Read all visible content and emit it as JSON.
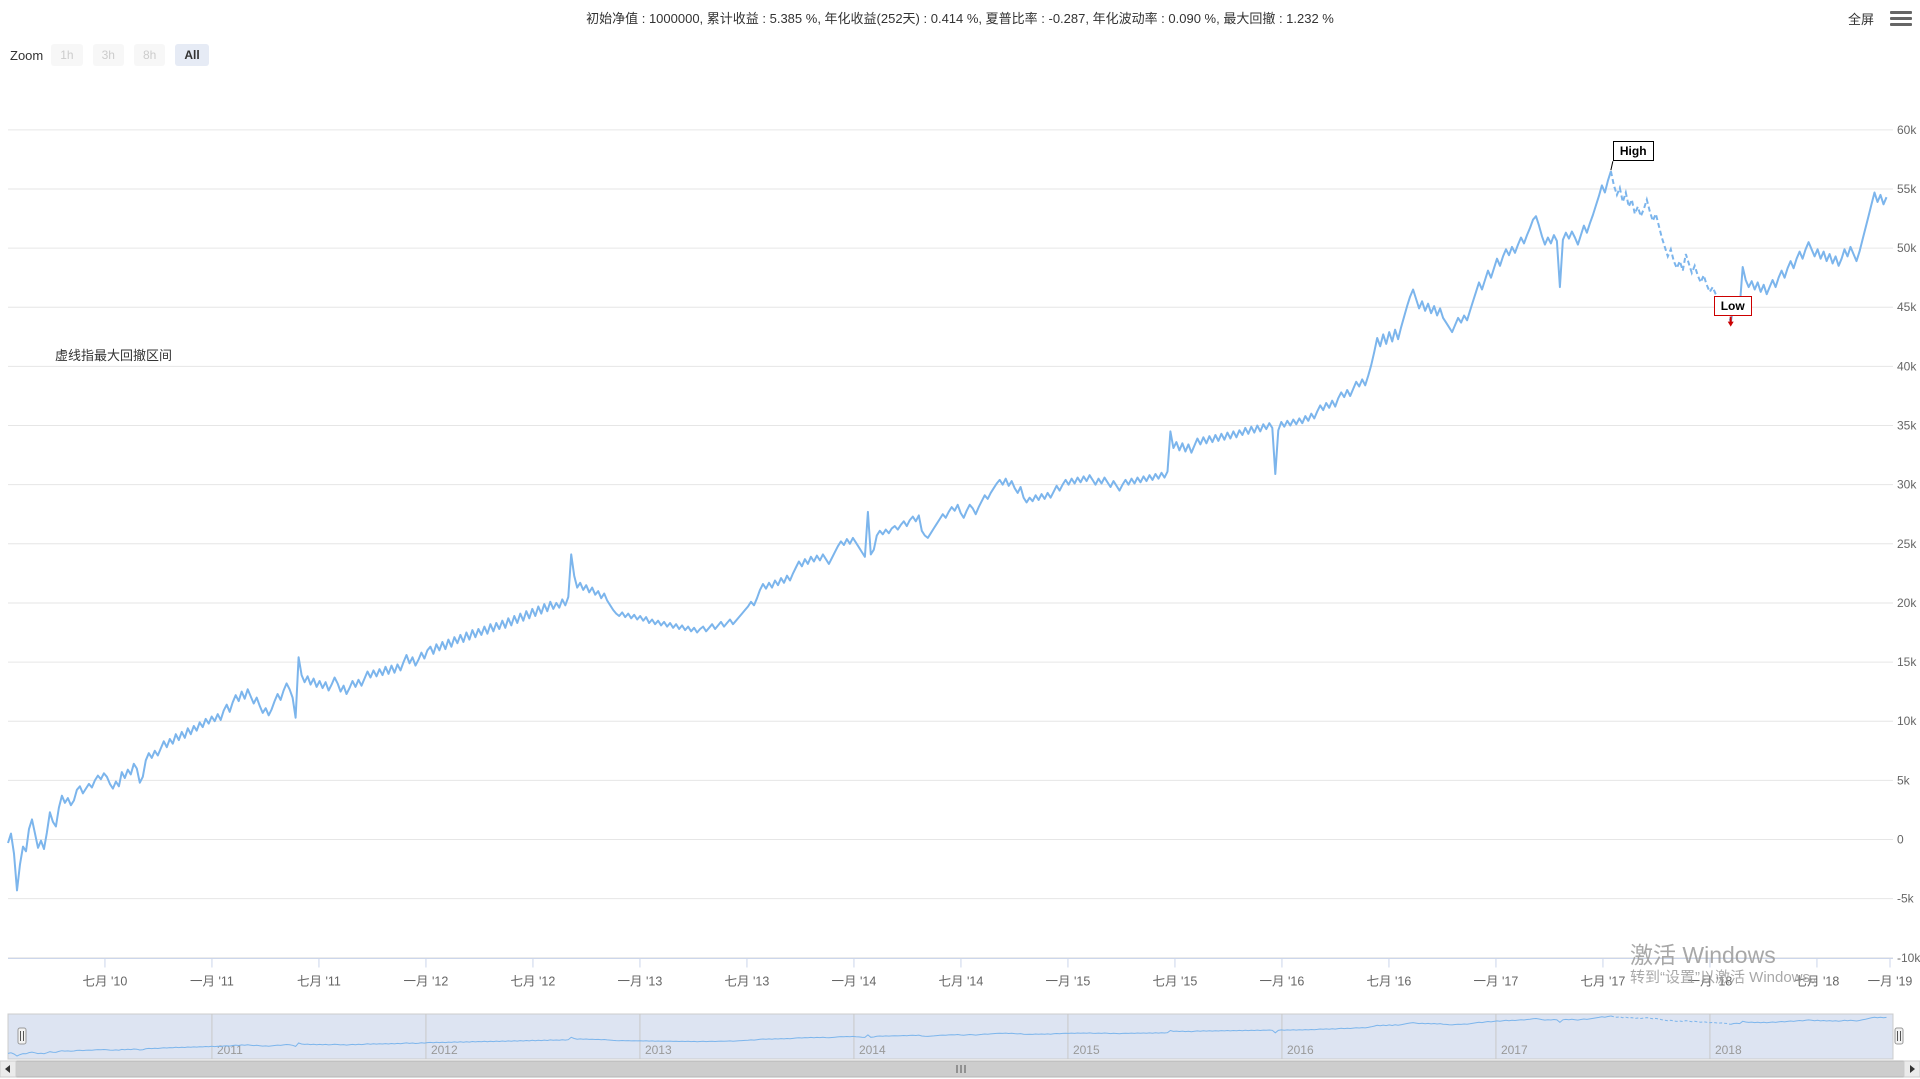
{
  "header": {
    "title": "初始净值 : 1000000, 累计收益 : 5.385 %, 年化收益(252天) : 0.414 %, 夏普比率 : -0.287, 年化波动率 : 0.090 %, 最大回撤 : 1.232 %",
    "fullscreen_label": "全屏"
  },
  "toolbar": {
    "zoom_label": "Zoom",
    "buttons": [
      {
        "label": "1h",
        "state": "disabled"
      },
      {
        "label": "3h",
        "state": "disabled"
      },
      {
        "label": "8h",
        "state": "disabled"
      },
      {
        "label": "All",
        "state": "active"
      }
    ]
  },
  "annotations": {
    "drawdown_note": "虚线指最大回撤区间",
    "high_label": "High",
    "low_label": "Low"
  },
  "watermark": {
    "line1": "激活 Windows",
    "line2": "转到“设置”以激活 Windows。"
  },
  "colors": {
    "line": "#7cb5ec",
    "grid": "#e6e6e6",
    "axis_line": "#ccd6eb",
    "axis_label": "#666666",
    "nav_mask": "rgba(102,133,194,0.22)",
    "nav_outline": "#cccccc",
    "nav_grid": "#c8c8c8",
    "nav_label": "#999999",
    "scrollbar_track": "#f2f2f2",
    "scrollbar_thumb": "#cdcdcd",
    "scrollbar_border": "#cccccc",
    "low_marker": "#cc0000"
  },
  "chart_data": {
    "type": "line",
    "title": "",
    "x_axis": {
      "tick_labels": [
        "七月 '10",
        "一月 '11",
        "七月 '11",
        "一月 '12",
        "七月 '12",
        "一月 '13",
        "七月 '13",
        "一月 '14",
        "七月 '14",
        "一月 '15",
        "七月 '15",
        "一月 '16",
        "七月 '16",
        "一月 '17",
        "七月 '17",
        "一月 '18",
        "七月 '18",
        "一月 '19"
      ],
      "tick_years": [
        2010.5,
        2011.0,
        2011.5,
        2012.0,
        2012.5,
        2013.0,
        2013.5,
        2014.0,
        2014.5,
        2015.0,
        2015.5,
        2016.0,
        2016.5,
        2017.0,
        2017.5,
        2018.0,
        2018.5,
        2019.0
      ]
    },
    "y_axis": {
      "unit": "k",
      "tick_labels": [
        "60k",
        "55k",
        "50k",
        "45k",
        "40k",
        "35k",
        "30k",
        "25k",
        "20k",
        "15k",
        "10k",
        "5k",
        "0",
        "-5k",
        "-10k"
      ],
      "tick_values": [
        60,
        55,
        50,
        45,
        40,
        35,
        30,
        25,
        20,
        15,
        10,
        5,
        0,
        -5,
        -10
      ],
      "range": [
        -10,
        60
      ]
    },
    "navigator": {
      "year_labels": [
        "2011",
        "2012",
        "2013",
        "2014",
        "2015",
        "2016",
        "2017",
        "2018"
      ],
      "year_values": [
        2011,
        2012,
        2013,
        2014,
        2015,
        2016,
        2017,
        2018
      ]
    },
    "series_start_year": 2010.047,
    "series_step_years": 0.014,
    "high_index": 535,
    "low_index": 575,
    "values_k": [
      -0.3,
      0.5,
      -1.2,
      -4.3,
      -2.1,
      -0.6,
      -1.0,
      0.9,
      1.7,
      0.5,
      -0.7,
      -0.1,
      -0.8,
      0.6,
      2.3,
      1.5,
      1.1,
      2.7,
      3.7,
      3.1,
      3.5,
      2.9,
      3.3,
      4.2,
      4.5,
      3.9,
      4.3,
      4.7,
      4.4,
      5.0,
      5.4,
      5.1,
      5.6,
      5.3,
      4.7,
      4.3,
      4.9,
      4.5,
      5.7,
      5.2,
      5.9,
      5.5,
      6.4,
      6.0,
      4.8,
      5.3,
      6.7,
      7.3,
      6.9,
      7.5,
      7.1,
      7.7,
      8.3,
      7.8,
      8.5,
      8.1,
      8.9,
      8.4,
      9.1,
      8.6,
      9.4,
      8.9,
      9.6,
      9.2,
      9.9,
      9.5,
      10.2,
      9.8,
      10.4,
      10.0,
      10.6,
      10.1,
      10.9,
      11.4,
      10.8,
      11.6,
      12.2,
      11.7,
      12.5,
      11.9,
      12.7,
      12.1,
      11.5,
      12.0,
      11.3,
      10.7,
      11.1,
      10.5,
      11.0,
      11.7,
      12.3,
      11.8,
      12.6,
      13.2,
      12.7,
      12.0,
      10.3,
      15.4,
      13.9,
      13.3,
      13.8,
      13.1,
      13.6,
      12.9,
      13.4,
      12.8,
      13.3,
      12.6,
      13.1,
      13.7,
      13.2,
      12.5,
      13.0,
      12.3,
      12.8,
      13.4,
      12.9,
      13.5,
      13.0,
      13.6,
      14.2,
      13.7,
      14.3,
      13.8,
      14.4,
      13.9,
      14.6,
      14.0,
      14.7,
      14.1,
      14.8,
      14.3,
      15.0,
      15.6,
      14.9,
      15.4,
      14.7,
      15.2,
      15.8,
      15.3,
      16.0,
      16.3,
      15.7,
      16.5,
      16.0,
      16.7,
      16.1,
      16.9,
      16.3,
      17.1,
      16.6,
      17.3,
      16.7,
      17.5,
      16.9,
      17.7,
      17.1,
      17.8,
      17.3,
      18.0,
      17.4,
      18.2,
      17.6,
      18.3,
      17.8,
      18.5,
      17.9,
      18.7,
      18.1,
      18.9,
      18.3,
      19.1,
      18.5,
      19.3,
      18.7,
      19.5,
      18.9,
      19.7,
      19.1,
      19.9,
      19.3,
      20.1,
      19.5,
      20.0,
      19.6,
      20.3,
      19.8,
      20.5,
      24.1,
      22.3,
      21.3,
      21.7,
      21.1,
      21.5,
      20.9,
      21.3,
      20.7,
      21.0,
      20.4,
      20.8,
      20.2,
      19.8,
      19.4,
      19.1,
      18.9,
      19.2,
      18.8,
      19.1,
      18.7,
      19.0,
      18.6,
      18.9,
      18.5,
      18.8,
      18.3,
      18.6,
      18.2,
      18.5,
      18.1,
      18.4,
      18.0,
      18.3,
      17.9,
      18.2,
      17.8,
      18.1,
      17.7,
      18.0,
      17.6,
      17.9,
      17.5,
      17.8,
      18.0,
      17.6,
      17.9,
      18.2,
      17.8,
      18.1,
      18.4,
      18.0,
      18.3,
      18.6,
      18.2,
      18.5,
      18.8,
      19.1,
      19.4,
      19.7,
      20.1,
      19.8,
      20.4,
      21.1,
      21.6,
      21.2,
      21.7,
      21.3,
      21.9,
      21.5,
      22.1,
      21.7,
      22.3,
      21.9,
      22.5,
      23.0,
      23.5,
      23.1,
      23.7,
      23.3,
      23.9,
      23.5,
      24.0,
      23.6,
      24.1,
      23.7,
      23.3,
      23.8,
      24.3,
      24.8,
      25.2,
      24.9,
      25.4,
      25.0,
      25.5,
      25.1,
      24.7,
      24.3,
      23.9,
      27.7,
      24.1,
      24.5,
      25.7,
      26.1,
      25.8,
      26.2,
      25.9,
      26.3,
      26.5,
      26.2,
      26.6,
      26.9,
      26.5,
      27.0,
      27.3,
      26.9,
      27.4,
      26.1,
      25.7,
      25.5,
      25.9,
      26.3,
      26.7,
      27.1,
      27.5,
      27.2,
      27.7,
      28.1,
      27.8,
      28.3,
      27.6,
      27.2,
      27.8,
      28.3,
      28.0,
      27.5,
      28.1,
      28.6,
      29.1,
      28.8,
      29.3,
      29.7,
      30.1,
      30.4,
      30.0,
      30.5,
      29.9,
      30.3,
      29.7,
      29.3,
      29.8,
      28.9,
      28.5,
      28.9,
      28.6,
      29.1,
      28.7,
      29.2,
      28.8,
      29.3,
      28.9,
      29.4,
      29.9,
      29.5,
      30.0,
      30.4,
      30.0,
      30.5,
      30.1,
      30.6,
      30.2,
      30.7,
      30.3,
      30.8,
      30.4,
      30.0,
      30.5,
      30.1,
      30.6,
      30.2,
      29.8,
      30.3,
      29.9,
      29.5,
      30.0,
      30.4,
      30.0,
      30.5,
      30.1,
      30.6,
      30.2,
      30.7,
      30.3,
      30.8,
      30.4,
      30.9,
      30.5,
      31.0,
      30.6,
      31.1,
      34.5,
      33.1,
      33.6,
      32.9,
      33.5,
      32.8,
      33.4,
      32.7,
      33.3,
      33.9,
      33.4,
      34.0,
      33.5,
      34.1,
      33.6,
      34.2,
      33.7,
      34.3,
      33.8,
      34.4,
      33.9,
      34.5,
      34.0,
      34.6,
      34.2,
      34.8,
      34.3,
      34.9,
      34.4,
      35.0,
      34.5,
      35.1,
      34.7,
      35.2,
      34.8,
      30.9,
      34.6,
      35.3,
      34.9,
      35.4,
      35.0,
      35.5,
      35.1,
      35.6,
      35.2,
      35.8,
      35.4,
      36.0,
      35.6,
      36.2,
      36.7,
      36.3,
      36.9,
      36.5,
      37.1,
      36.6,
      37.3,
      37.8,
      37.4,
      38.0,
      37.5,
      38.1,
      38.7,
      38.3,
      38.9,
      38.4,
      39.2,
      40.1,
      41.2,
      42.4,
      41.7,
      42.7,
      41.9,
      42.9,
      42.1,
      43.1,
      42.3,
      43.3,
      44.2,
      45.1,
      45.9,
      46.5,
      45.7,
      44.9,
      45.5,
      44.7,
      45.3,
      44.5,
      45.1,
      44.3,
      44.9,
      44.1,
      43.7,
      43.3,
      42.9,
      43.5,
      44.1,
      43.7,
      44.3,
      43.9,
      44.7,
      45.5,
      46.3,
      47.1,
      46.5,
      47.3,
      48.1,
      47.5,
      48.3,
      49.1,
      48.5,
      49.3,
      49.9,
      49.4,
      50.1,
      49.6,
      50.3,
      50.9,
      50.4,
      51.1,
      51.7,
      52.4,
      52.7,
      51.9,
      51.0,
      50.3,
      50.9,
      50.4,
      51.1,
      50.6,
      46.7,
      50.7,
      51.3,
      50.8,
      51.4,
      50.9,
      50.3,
      51.1,
      51.9,
      51.3,
      52.1,
      52.8,
      53.6,
      54.4,
      55.3,
      54.7,
      55.7,
      56.5,
      55.3,
      54.5,
      55.1,
      53.9,
      54.7,
      53.5,
      54.1,
      52.9,
      53.5,
      52.7,
      53.3,
      54.1,
      53.1,
      52.3,
      52.9,
      51.9,
      50.9,
      50.1,
      49.3,
      49.9,
      48.9,
      48.3,
      48.9,
      48.1,
      49.5,
      48.7,
      47.9,
      48.5,
      47.7,
      47.1,
      47.7,
      46.9,
      46.3,
      46.7,
      46.1,
      45.7,
      46.0,
      45.4,
      44.9,
      43.7,
      45.1,
      45.5,
      45.0,
      48.4,
      47.3,
      46.7,
      47.2,
      46.5,
      47.1,
      46.3,
      46.9,
      46.1,
      46.7,
      47.3,
      46.7,
      47.5,
      48.1,
      47.5,
      48.3,
      48.9,
      48.3,
      49.1,
      49.7,
      49.1,
      49.9,
      50.5,
      49.9,
      49.3,
      49.9,
      49.1,
      49.7,
      48.9,
      49.5,
      48.7,
      49.3,
      48.5,
      49.1,
      49.9,
      49.3,
      50.1,
      49.5,
      48.9,
      49.7,
      50.7,
      51.7,
      52.7,
      53.7,
      54.7,
      53.9,
      54.5,
      53.7,
      54.3
    ]
  }
}
